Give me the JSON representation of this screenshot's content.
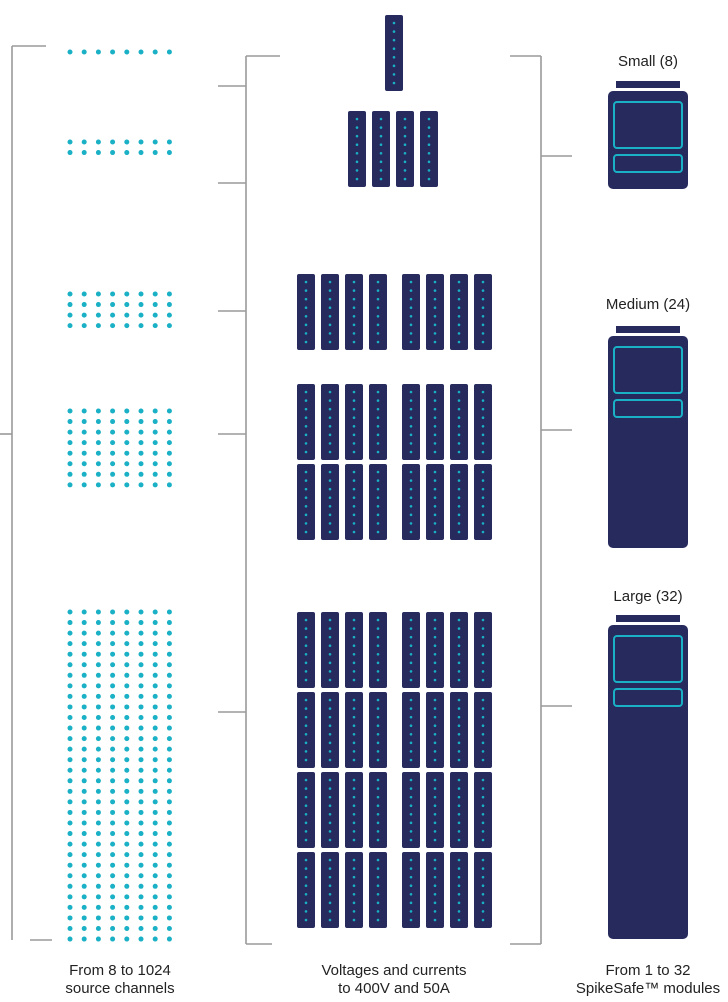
{
  "colors": {
    "navy": "#262a5d",
    "dot": "#1ab0c5",
    "bracket": "#9a9a9a",
    "text": "#222222"
  },
  "chassis": [
    {
      "label": "Small (8)",
      "size": "small"
    },
    {
      "label": "Medium (24)",
      "size": "medium"
    },
    {
      "label": "Large (32)",
      "size": "large"
    }
  ],
  "captions": {
    "channels": {
      "line1": "From 8 to 1024",
      "line2": "source channels"
    },
    "voltages": {
      "line1": "Voltages and currents",
      "line2": "to 400V and 50A"
    },
    "modules": {
      "line1": "From 1 to 32",
      "line2": "SpikeSafe™ modules"
    }
  },
  "configurations": [
    {
      "channel_rows": 1,
      "channel_cols": 8,
      "modules": 1
    },
    {
      "channel_rows": 2,
      "channel_cols": 8,
      "modules": 4
    },
    {
      "channel_rows": 4,
      "channel_cols": 8,
      "modules": 8
    },
    {
      "channel_rows": 8,
      "channel_cols": 8,
      "modules": 16
    },
    {
      "channel_rows": 32,
      "channel_cols": 8,
      "modules": 32
    }
  ]
}
